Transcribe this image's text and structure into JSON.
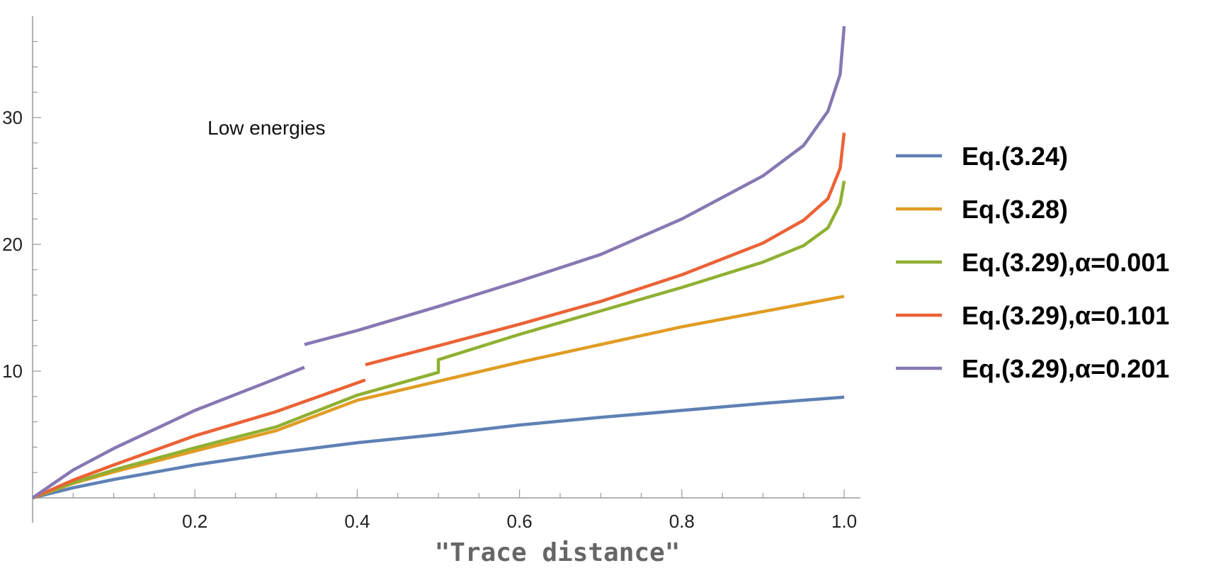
{
  "chart_data": {
    "type": "line",
    "title": "",
    "xlabel": "\"Trace distance\"",
    "ylabel": "",
    "annotation": "Low energies",
    "xlim": [
      0,
      1.02
    ],
    "ylim": [
      0,
      38
    ],
    "x_ticks": [
      "0.2",
      "0.4",
      "0.6",
      "0.8",
      "1.0"
    ],
    "y_ticks": [
      "10",
      "20",
      "30"
    ],
    "x_tick_values": [
      0.2,
      0.4,
      0.6,
      0.8,
      1.0
    ],
    "y_tick_values": [
      10,
      20,
      30
    ],
    "legend_position": "right",
    "series": [
      {
        "name": "Eq.(3.24)",
        "color": "#5e81b5",
        "segments": [
          [
            [
              0,
              0
            ],
            [
              0.05,
              0.8
            ],
            [
              0.1,
              1.45
            ],
            [
              0.2,
              2.6
            ],
            [
              0.3,
              3.55
            ],
            [
              0.4,
              4.35
            ],
            [
              0.5,
              5.0
            ],
            [
              0.6,
              5.75
            ],
            [
              0.7,
              6.35
            ],
            [
              0.8,
              6.9
            ],
            [
              0.9,
              7.45
            ],
            [
              1.0,
              7.95
            ]
          ]
        ]
      },
      {
        "name": "Eq.(3.28)",
        "color": "#e19c24",
        "segments": [
          [
            [
              0,
              0
            ],
            [
              0.05,
              1.15
            ],
            [
              0.1,
              2.05
            ],
            [
              0.2,
              3.7
            ],
            [
              0.3,
              5.3
            ],
            [
              0.4,
              7.7
            ],
            [
              0.5,
              9.2
            ],
            [
              0.6,
              10.7
            ],
            [
              0.7,
              12.1
            ],
            [
              0.8,
              13.5
            ],
            [
              0.9,
              14.7
            ],
            [
              1.0,
              15.9
            ]
          ]
        ]
      },
      {
        "name": "Eq.(3.29),α=0.001",
        "color": "#8fb032",
        "segments": [
          [
            [
              0,
              0
            ],
            [
              0.05,
              1.2
            ],
            [
              0.1,
              2.2
            ],
            [
              0.2,
              3.95
            ],
            [
              0.3,
              5.6
            ],
            [
              0.4,
              8.1
            ],
            [
              0.5,
              9.9
            ],
            [
              0.5,
              10.9
            ],
            [
              0.6,
              12.9
            ],
            [
              0.7,
              14.75
            ],
            [
              0.8,
              16.6
            ],
            [
              0.9,
              18.6
            ],
            [
              0.95,
              19.9
            ],
            [
              0.98,
              21.3
            ],
            [
              0.995,
              23.2
            ],
            [
              1.0,
              25.0
            ]
          ]
        ]
      },
      {
        "name": "Eq.(3.29),α=0.101",
        "color": "#eb6235",
        "segments": [
          [
            [
              0,
              0
            ],
            [
              0.05,
              1.4
            ],
            [
              0.1,
              2.6
            ],
            [
              0.2,
              4.9
            ],
            [
              0.3,
              6.8
            ],
            [
              0.41,
              9.3
            ]
          ],
          [
            [
              0.41,
              10.5
            ],
            [
              0.5,
              12.0
            ],
            [
              0.6,
              13.7
            ],
            [
              0.7,
              15.5
            ],
            [
              0.8,
              17.6
            ],
            [
              0.9,
              20.1
            ],
            [
              0.95,
              21.9
            ],
            [
              0.98,
              23.6
            ],
            [
              0.995,
              26.0
            ],
            [
              1.0,
              28.8
            ]
          ]
        ]
      },
      {
        "name": "Eq.(3.29),α=0.201",
        "color": "#8778b3",
        "segments": [
          [
            [
              0,
              0
            ],
            [
              0.05,
              2.2
            ],
            [
              0.1,
              3.9
            ],
            [
              0.2,
              6.9
            ],
            [
              0.3,
              9.4
            ],
            [
              0.335,
              10.3
            ]
          ],
          [
            [
              0.335,
              12.1
            ],
            [
              0.4,
              13.2
            ],
            [
              0.5,
              15.1
            ],
            [
              0.6,
              17.1
            ],
            [
              0.7,
              19.2
            ],
            [
              0.8,
              22.0
            ],
            [
              0.9,
              25.4
            ],
            [
              0.95,
              27.8
            ],
            [
              0.98,
              30.5
            ],
            [
              0.995,
              33.4
            ],
            [
              1.0,
              37.2
            ]
          ]
        ]
      }
    ]
  }
}
